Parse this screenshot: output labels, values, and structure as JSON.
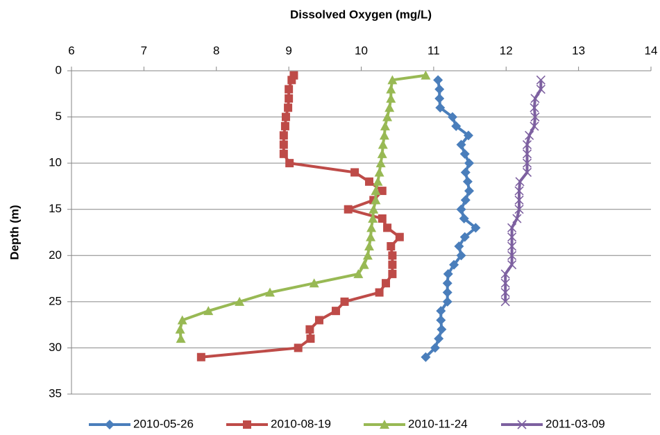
{
  "chart_data": {
    "type": "line",
    "x_label": "Dissolved Oxygen (mg/L)",
    "y_label": "Depth (m)",
    "xlim": [
      6,
      14
    ],
    "xticks": [
      6,
      7,
      8,
      9,
      10,
      11,
      12,
      13,
      14
    ],
    "ylim": [
      0,
      35
    ],
    "yticks": [
      0,
      5,
      10,
      15,
      20,
      25,
      30,
      35
    ],
    "y_inverted": true,
    "grid": true,
    "legend": "bottom",
    "series": [
      {
        "name": "2010-05-26",
        "color": "#4a7ebb",
        "marker": "diamond",
        "x": [
          11.06,
          11.08,
          11.08,
          11.09,
          11.26,
          11.31,
          11.48,
          11.38,
          11.43,
          11.49,
          11.44,
          11.47,
          11.49,
          11.44,
          11.38,
          11.42,
          11.58,
          11.43,
          11.35,
          11.38,
          11.28,
          11.2,
          11.19,
          11.19,
          11.19,
          11.1,
          11.1,
          11.11,
          11.07,
          11.02,
          10.89
        ],
        "values": [
          1,
          2,
          3,
          4,
          5,
          6,
          7,
          8,
          9,
          10,
          11,
          12,
          13,
          14,
          15,
          16,
          17,
          18,
          19,
          20,
          21,
          22,
          23,
          24,
          25,
          26,
          27,
          28,
          29,
          30,
          31
        ]
      },
      {
        "name": "2010-08-19",
        "color": "#be4b48",
        "marker": "square",
        "x": [
          9.07,
          9.04,
          9.0,
          9.0,
          8.99,
          8.96,
          8.95,
          8.93,
          8.93,
          8.93,
          9.01,
          9.91,
          10.11,
          10.29,
          10.17,
          9.82,
          10.29,
          10.36,
          10.53,
          10.41,
          10.43,
          10.43,
          10.43,
          10.34,
          10.25,
          9.77,
          9.65,
          9.42,
          9.29,
          9.3,
          9.13,
          7.79
        ],
        "values": [
          0.5,
          1,
          2,
          3,
          4,
          5,
          6,
          7,
          8,
          9,
          10,
          11,
          12,
          13,
          14,
          15,
          16,
          17,
          18,
          19,
          20,
          21,
          22,
          23,
          24,
          25,
          26,
          27,
          28,
          29,
          30,
          31
        ]
      },
      {
        "name": "2010-11-24",
        "color": "#98b954",
        "marker": "triangle",
        "x": [
          10.89,
          10.43,
          10.41,
          10.41,
          10.39,
          10.36,
          10.33,
          10.32,
          10.3,
          10.29,
          10.27,
          10.25,
          10.23,
          10.2,
          10.2,
          10.17,
          10.16,
          10.14,
          10.13,
          10.11,
          10.09,
          10.04,
          9.96,
          9.35,
          8.74,
          8.32,
          7.89,
          7.53,
          7.5,
          7.51
        ],
        "values": [
          0.5,
          1,
          2,
          3,
          4,
          5,
          6,
          7,
          8,
          9,
          10,
          11,
          12,
          13,
          14,
          15,
          16,
          17,
          18,
          19,
          20,
          21,
          22,
          23,
          24,
          25,
          26,
          27,
          28,
          29
        ]
      },
      {
        "name": "2011-03-09",
        "color": "#7d60a0",
        "marker": "x",
        "x": [
          12.48,
          12.48,
          12.4,
          12.39,
          12.4,
          12.39,
          12.32,
          12.29,
          12.29,
          12.29,
          12.29,
          12.19,
          12.18,
          12.18,
          12.18,
          12.15,
          12.08,
          12.08,
          12.08,
          12.08,
          12.08,
          11.99,
          11.99,
          11.99,
          11.99
        ],
        "values": [
          1,
          2,
          3,
          4,
          5,
          6,
          7,
          8,
          9,
          10,
          11,
          12,
          13,
          14,
          15,
          16,
          17,
          18,
          19,
          20,
          21,
          22,
          23,
          24,
          25
        ]
      }
    ]
  }
}
